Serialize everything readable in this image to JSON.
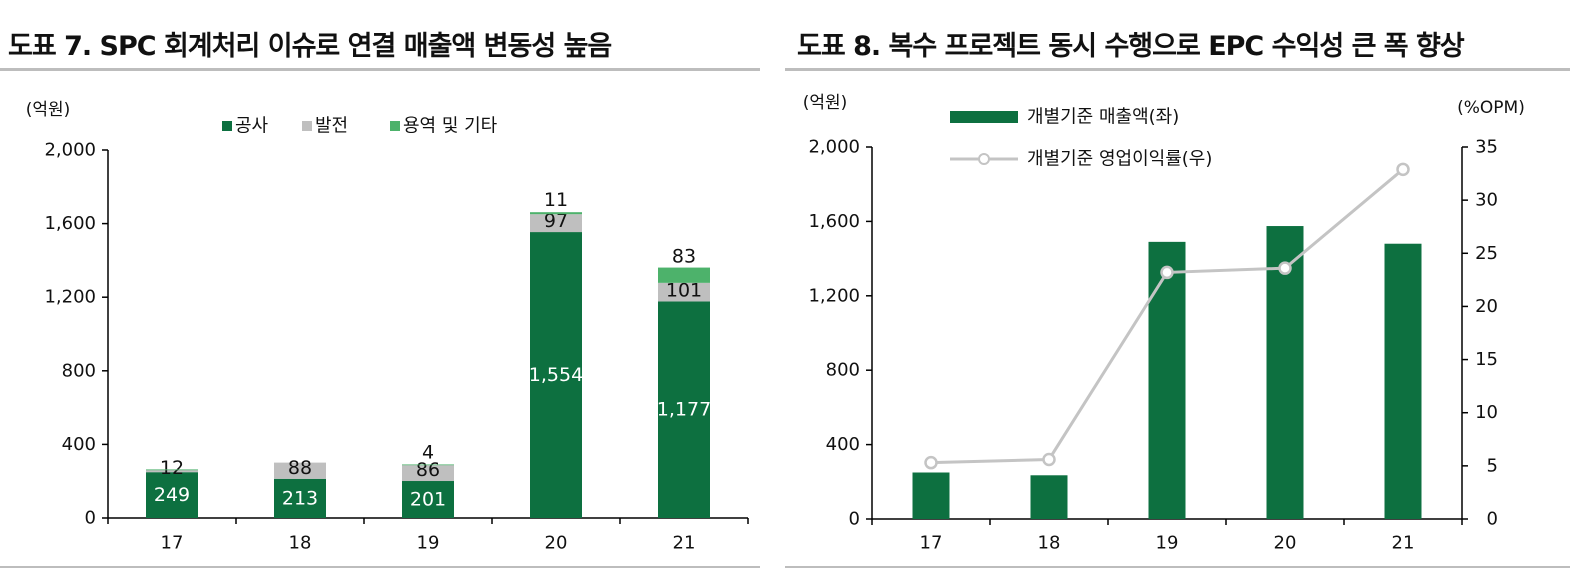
{
  "left": {
    "title": "도표 7. SPC 회계처리 이슈로 연결 매출액 변동성 높음",
    "chart_data": {
      "type": "bar",
      "stacked": true,
      "ylabel": "(억원)",
      "ylim": [
        0,
        2000
      ],
      "yticks": [
        0,
        400,
        800,
        1200,
        1600,
        2000
      ],
      "ytick_labels": [
        "0",
        "400",
        "800",
        "1,200",
        "1,600",
        "2,000"
      ],
      "categories": [
        "17",
        "18",
        "19",
        "20",
        "21"
      ],
      "legend_position": "top",
      "series": [
        {
          "name": "공사",
          "color": "#0d7040",
          "values": [
            249,
            213,
            201,
            1554,
            1177
          ],
          "labels": [
            "249",
            "213",
            "201",
            "1,554",
            "1,177"
          ],
          "label_color": "#ffffff"
        },
        {
          "name": "발전",
          "color": "#bfbfbf",
          "values": [
            12,
            88,
            86,
            97,
            101
          ],
          "labels": [
            "12",
            "88",
            "86",
            "97",
            "101"
          ],
          "label_color": "#111111"
        },
        {
          "name": "용역 및 기타",
          "color": "#4db26b",
          "values": [
            3,
            0,
            4,
            11,
            83
          ],
          "labels": [
            "",
            "",
            "4",
            "11",
            "83"
          ],
          "label_color": "#111111"
        }
      ]
    }
  },
  "right": {
    "title": "도표 8. 복수 프로젝트 동시 수행으로 EPC 수익성 큰 폭 향상",
    "chart_data": {
      "type": "bar",
      "ylabel": "(억원)",
      "y2label": "(%OPM)",
      "ylim": [
        0,
        2000
      ],
      "yticks": [
        0,
        400,
        800,
        1200,
        1600,
        2000
      ],
      "ytick_labels": [
        "0",
        "400",
        "800",
        "1,200",
        "1,600",
        "2,000"
      ],
      "y2lim": [
        0,
        35
      ],
      "y2ticks": [
        0,
        5,
        10,
        15,
        20,
        25,
        30,
        35
      ],
      "y2tick_labels": [
        "0",
        "5",
        "10",
        "15",
        "20",
        "25",
        "30",
        "35"
      ],
      "categories": [
        "17",
        "18",
        "19",
        "20",
        "21"
      ],
      "legend_position": "top-left",
      "series": [
        {
          "name": "개별기준 매출액(좌)",
          "type": "bar",
          "axis": "left",
          "color": "#0d7040",
          "values": [
            250,
            235,
            1490,
            1575,
            1480
          ]
        },
        {
          "name": "개별기준 영업이익률(우)",
          "type": "line",
          "axis": "right",
          "color": "#c4c4c4",
          "values": [
            5.3,
            5.6,
            23.2,
            23.6,
            32.9
          ]
        }
      ]
    }
  }
}
